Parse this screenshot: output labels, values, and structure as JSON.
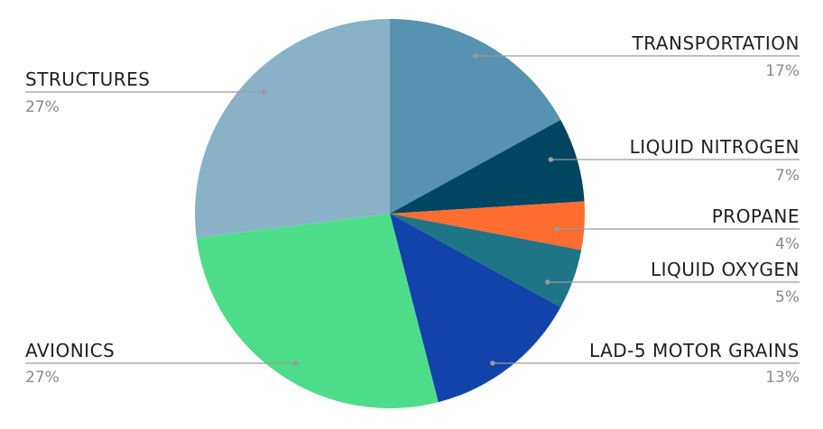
{
  "chart_data": {
    "type": "pie",
    "start_angle_deg": 0,
    "direction": "clockwise",
    "slices": [
      {
        "label": "TRANSPORTATION",
        "value": 17,
        "value_label": "17%",
        "color": "#5792b0",
        "label_side": "right"
      },
      {
        "label": "LIQUID NITROGEN",
        "value": 7,
        "value_label": "7%",
        "color": "#004661",
        "label_side": "right"
      },
      {
        "label": "PROPANE",
        "value": 4,
        "value_label": "4%",
        "color": "#ff6d31",
        "label_side": "right"
      },
      {
        "label": "LIQUID OXYGEN",
        "value": 5,
        "value_label": "5%",
        "color": "#1f7586",
        "label_side": "right"
      },
      {
        "label": "LAD-5 MOTOR GRAINS",
        "value": 13,
        "value_label": "13%",
        "color": "#1243aa",
        "label_side": "right"
      },
      {
        "label": "AVIONICS",
        "value": 27,
        "value_label": "27%",
        "color": "#4ddd8a",
        "label_side": "left"
      },
      {
        "label": "STRUCTURES",
        "value": 27,
        "value_label": "27%",
        "color": "#89b2c8",
        "label_side": "left"
      }
    ]
  }
}
